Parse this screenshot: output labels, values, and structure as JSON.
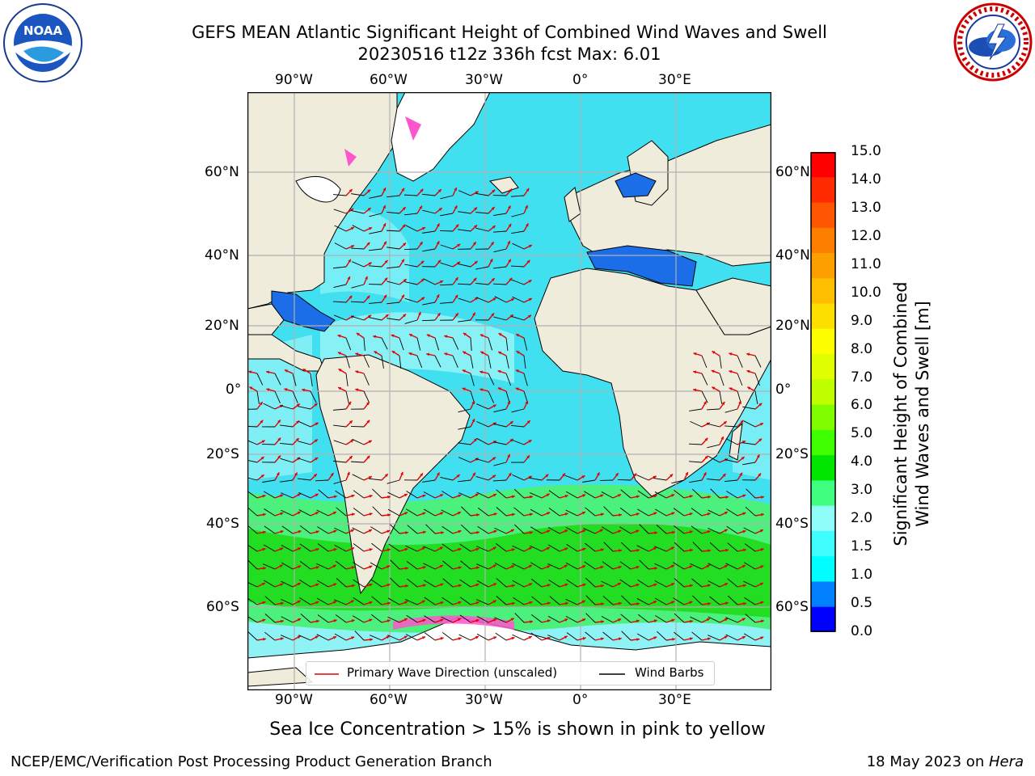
{
  "title": {
    "line1": "GEFS MEAN Atlantic Significant Height of Combined Wind Waves and Swell",
    "line2": "20230516 t12z 336h fcst   Max: 6.01"
  },
  "logos": {
    "left_icon": "noaa-logo-icon",
    "right_icon": "national-weather-service-logo-icon"
  },
  "map": {
    "lon_ticks": [
      "90°W",
      "60°W",
      "30°W",
      "0°",
      "30°E"
    ],
    "lat_ticks": [
      "60°N",
      "40°N",
      "20°N",
      "0°",
      "20°S",
      "40°S",
      "60°S"
    ],
    "colors": {
      "land": "#f0ecdc",
      "ocean_low": "#41e0f0",
      "ocean_mid": "#8ff3f6",
      "ocean_high": "#22dd22",
      "arrow": "#e00000"
    }
  },
  "legend": {
    "wave_direction": "Primary Wave Direction (unscaled)",
    "wind_barbs": "Wind Barbs"
  },
  "colorbar": {
    "label_line1": "Significant Height of Combined",
    "label_line2": "Wind Waves and Swell [m]",
    "ticks": [
      "15.0",
      "14.0",
      "13.0",
      "12.0",
      "11.0",
      "10.0",
      "9.0",
      "8.0",
      "7.0",
      "6.0",
      "5.0",
      "4.0",
      "3.0",
      "2.0",
      "1.5",
      "1.0",
      "0.5",
      "0.0"
    ],
    "colors": [
      "#fe0000",
      "#fe2a00",
      "#fe5500",
      "#fe7f00",
      "#fe9f00",
      "#ffbf00",
      "#fee000",
      "#fefe00",
      "#dffe00",
      "#bfff00",
      "#80fe00",
      "#40ff00",
      "#00e600",
      "#40fe80",
      "#8ffef8",
      "#40fefe",
      "#00fefe",
      "#0080ff",
      "#0000ff"
    ]
  },
  "note": "Sea Ice Concentration > 15% is shown in pink to yellow",
  "footer": {
    "left": "NCEP/EMC/Verification Post Processing Product Generation Branch",
    "right_date": "18 May 2023 on ",
    "right_machine": "Hera"
  }
}
